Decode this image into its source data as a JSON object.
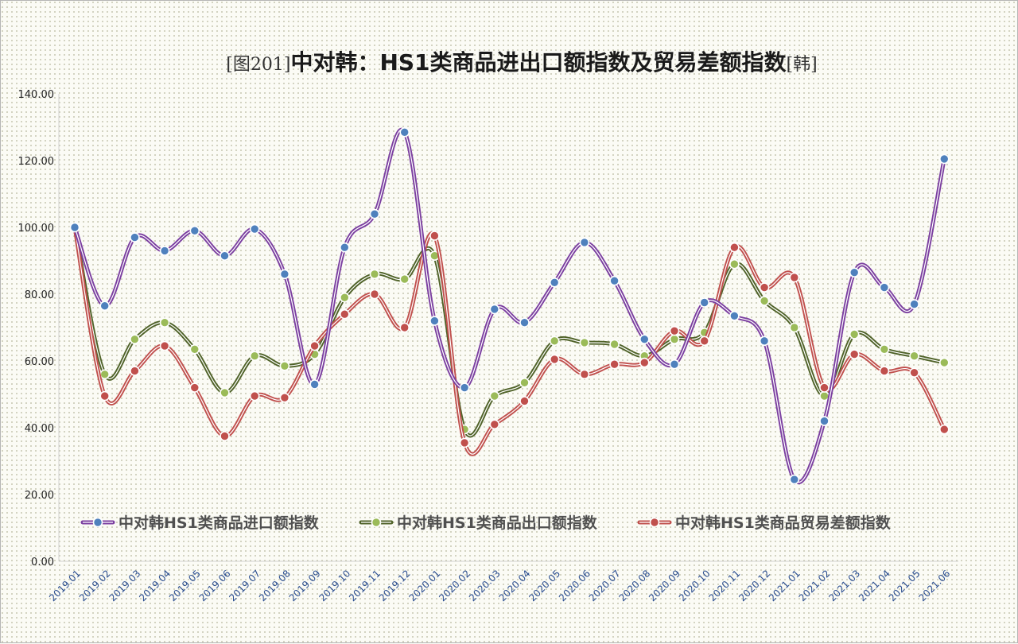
{
  "chart_data": {
    "type": "line",
    "title": {
      "prefix": "[图201]",
      "main": "中对韩：HS1类商品进出口额指数及贸易差额指数",
      "suffix": "[韩]"
    },
    "xlabel": "",
    "ylabel": "",
    "ylim": [
      0,
      140
    ],
    "yticks": [
      "0.00",
      "20.00",
      "40.00",
      "60.00",
      "80.00",
      "100.00",
      "120.00",
      "140.00"
    ],
    "grid": false,
    "legend_position": "bottom-inside",
    "categories": [
      "2019.01",
      "2019.02",
      "2019.03",
      "2019.04",
      "2019.05",
      "2019.06",
      "2019.07",
      "2019.08",
      "2019.09",
      "2019.10",
      "2019.11",
      "2019.12",
      "2020.01",
      "2020.02",
      "2020.03",
      "2020.04",
      "2020.05",
      "2020.06",
      "2020.07",
      "2020.08",
      "2020.09",
      "2020.10",
      "2020.11",
      "2020.12",
      "2021.01",
      "2021.02",
      "2021.03",
      "2021.04",
      "2021.05",
      "2021.06"
    ],
    "series": [
      {
        "name": "中对韩HS1类商品进口额指数",
        "line_color": "#7b3fa0",
        "marker_color": "#4f81bd",
        "values": [
          100,
          76.5,
          97,
          93,
          99,
          91.5,
          99.5,
          86,
          53,
          94,
          104,
          128.5,
          72,
          52,
          75.5,
          71.5,
          83.5,
          95.5,
          84,
          66.5,
          59,
          77.5,
          73.5,
          66,
          24.5,
          42,
          86.5,
          82,
          77,
          120.5
        ]
      },
      {
        "name": "中对韩HS1类商品出口额指数",
        "line_color": "#4f6228",
        "marker_color": "#9bbb59",
        "values": [
          100,
          56,
          66.5,
          71.5,
          63.5,
          50.5,
          61.5,
          58.5,
          62,
          79,
          86,
          84.5,
          91.5,
          39.5,
          49.5,
          53.5,
          66,
          65.5,
          65,
          61.5,
          66.5,
          68.5,
          89,
          78,
          70,
          49.5,
          68,
          63.5,
          61.5,
          59.5
        ]
      },
      {
        "name": "中对韩HS1类商品贸易差额指数",
        "line_color": "#c0504d",
        "marker_color": "#c0504d",
        "values": [
          100,
          49.5,
          57,
          64.5,
          52,
          37.5,
          49.5,
          49,
          64.5,
          74,
          80,
          70,
          97.5,
          35.5,
          41,
          48,
          60.5,
          56,
          59,
          59.5,
          69,
          66,
          94,
          82,
          85,
          52,
          62,
          57,
          56.5,
          39.5
        ]
      }
    ]
  }
}
